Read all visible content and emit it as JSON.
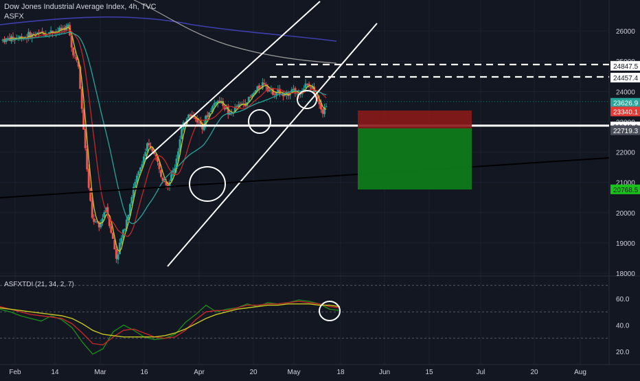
{
  "header": {
    "symbol": "Dow Jones Industrial Average Index",
    "timeframe": "4h",
    "source": "TVC",
    "indicator_label": "ASFX"
  },
  "oscillator": {
    "label": "ASFXTDI (21, 34, 2, 7)"
  },
  "colors": {
    "background": "#131722",
    "bull": "#26a69a",
    "bear": "#ef5350",
    "ma_yellow": "#c8c81e",
    "ma_red": "#c62828",
    "ma_teal": "#26a69a",
    "ma_blue": "#3f3fb0",
    "ma_gray": "#9e9e9e",
    "stop_zone": "#8b1a1a",
    "target_zone": "#0f7a1a",
    "osc_green": "#1b8a1b",
    "osc_red": "#c62828",
    "osc_yellow": "#c8c81e"
  },
  "chart_data": [
    {
      "type": "candlestick",
      "title": "Dow Jones Industrial Average Index, 4h, TVC",
      "x_ticks": [
        "Feb",
        "14",
        "Mar",
        "16",
        "Apr",
        "20",
        "May",
        "18",
        "Jun",
        "15",
        "Jul",
        "20",
        "Aug"
      ],
      "y_ticks": [
        26000,
        25000,
        24000,
        23000,
        22000,
        21000,
        20000,
        19000,
        18000
      ],
      "ylim": [
        18000,
        26800
      ],
      "grid": true,
      "price_labels": [
        {
          "value": "24847.5",
          "kind": "level"
        },
        {
          "value": "24457.4",
          "kind": "level"
        },
        {
          "value": "23626.9",
          "kind": "last"
        },
        {
          "value": "23340.1",
          "kind": "stop"
        },
        {
          "value": "22843.6",
          "kind": "support"
        },
        {
          "value": "22719.3",
          "kind": "entry"
        },
        {
          "value": "20768.5",
          "kind": "target"
        }
      ],
      "path": [
        [
          0,
          25700
        ],
        [
          6,
          25800
        ],
        [
          10,
          25900
        ],
        [
          16,
          26000
        ],
        [
          19,
          26150
        ],
        [
          20,
          25450
        ],
        [
          22,
          24800
        ],
        [
          23,
          23400
        ],
        [
          24,
          22100
        ],
        [
          25,
          20800
        ],
        [
          26,
          19800
        ],
        [
          28,
          19500
        ],
        [
          30,
          20200
        ],
        [
          32,
          19100
        ],
        [
          33,
          18500
        ],
        [
          36,
          19800
        ],
        [
          38,
          20800
        ],
        [
          40,
          21500
        ],
        [
          42,
          22200
        ],
        [
          44,
          22000
        ],
        [
          46,
          21300
        ],
        [
          48,
          20900
        ],
        [
          50,
          21500
        ],
        [
          52,
          22700
        ],
        [
          54,
          23300
        ],
        [
          56,
          23100
        ],
        [
          58,
          22900
        ],
        [
          60,
          23300
        ],
        [
          62,
          23700
        ],
        [
          64,
          23600
        ],
        [
          66,
          23200
        ],
        [
          68,
          23500
        ],
        [
          70,
          23600
        ],
        [
          72,
          23800
        ],
        [
          74,
          24100
        ],
        [
          76,
          24300
        ],
        [
          78,
          24000
        ],
        [
          80,
          24000
        ],
        [
          82,
          23800
        ],
        [
          84,
          24100
        ],
        [
          86,
          23900
        ],
        [
          88,
          24200
        ],
        [
          90,
          24100
        ],
        [
          92,
          23700
        ],
        [
          93,
          23300
        ],
        [
          94,
          23600
        ]
      ],
      "x_domain": [
        0,
        175
      ]
    },
    {
      "type": "line",
      "title": "ASFXTDI (21, 34, 2, 7)",
      "y_ticks": [
        60.0,
        40.0,
        20.0
      ],
      "ylim": [
        15,
        70
      ],
      "series": [
        {
          "values": [
            52,
            50,
            47,
            45,
            43,
            47,
            44,
            38,
            27,
            18,
            22,
            35,
            40,
            36,
            31,
            29,
            30,
            33,
            42,
            48,
            55,
            50,
            52,
            53,
            56,
            54,
            57,
            56,
            57,
            59,
            58,
            56,
            52,
            51
          ]
        },
        {
          "values": [
            54,
            52,
            50,
            48,
            47,
            46,
            45,
            41,
            34,
            26,
            25,
            31,
            36,
            37,
            34,
            31,
            30,
            31,
            36,
            44,
            50,
            51,
            51,
            53,
            55,
            55,
            56,
            56,
            57,
            58,
            57,
            56,
            54,
            53
          ]
        },
        {
          "values": [
            53,
            52,
            51,
            50,
            49,
            48,
            47,
            45,
            41,
            36,
            33,
            32,
            31,
            31,
            31,
            31,
            32,
            34,
            37,
            41,
            45,
            48,
            50,
            52,
            53,
            54,
            55,
            55,
            56,
            56,
            56,
            55,
            55,
            54
          ]
        }
      ],
      "x_domain": [
        0,
        33
      ]
    }
  ]
}
